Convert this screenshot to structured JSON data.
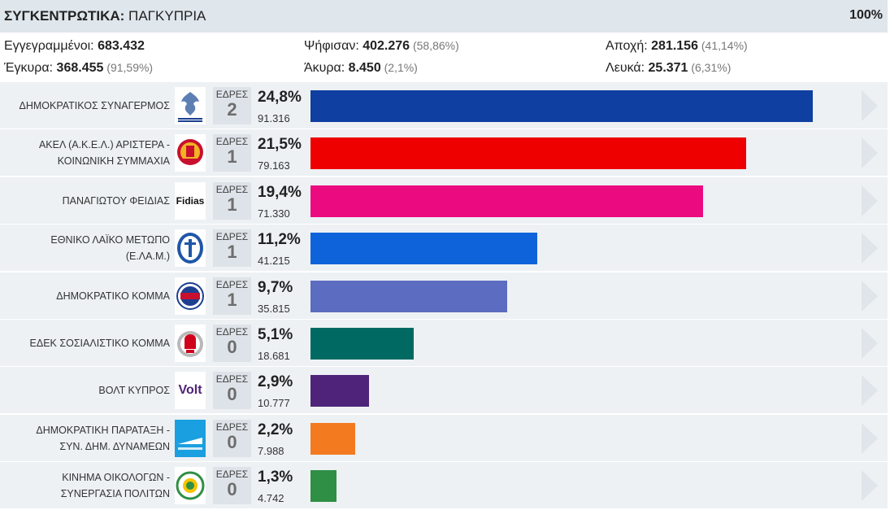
{
  "header": {
    "title_bold": "ΣΥΓΚΕΝΤΡΩΤΙΚΑ:",
    "title_rest": " ΠΑΓΚΥΠΡΙΑ",
    "progress": "100%"
  },
  "stats": {
    "registered": {
      "label": "Εγγεγραμμένοι: ",
      "value": "683.432",
      "pct": ""
    },
    "voted": {
      "label": "Ψήφισαν: ",
      "value": "402.276",
      "pct": " (58,86%)"
    },
    "abstention": {
      "label": "Αποχή: ",
      "value": "281.156",
      "pct": " (41,14%)"
    },
    "valid": {
      "label": "Έγκυρα: ",
      "value": "368.455",
      "pct": " (91,59%)"
    },
    "invalid": {
      "label": "Άκυρα: ",
      "value": "8.450",
      "pct": " (2,1%)"
    },
    "blank": {
      "label": "Λευκά: ",
      "value": "25.371",
      "pct": " (6,31%)"
    }
  },
  "seats_label": "ΕΔΡΕΣ",
  "parties": [
    {
      "name": "ΔΗΜΟΚΡΑΤΙΚΟΣ ΣΥΝΑΓΕΡΜΟΣ",
      "seats": "2",
      "percent": "24,8%",
      "votes": "91.316",
      "share": 24.8,
      "color": "#0f3fa1",
      "logo": "eagle-logo-icon",
      "logo_text": "ΔΗΜΟΚΡΑΤΙΚΟΣ ΣΥΝΑΓΕΡΜΟΣ"
    },
    {
      "name": "ΑΚΕΛ (Α.Κ.Ε.Λ.) ΑΡΙΣΤΕΡΑ -\nΚΟΙΝΩΝΙΚΗ ΣΥΜΜΑΧΙΑ",
      "seats": "1",
      "percent": "21,5%",
      "votes": "79.163",
      "share": 21.5,
      "color": "#ee0000",
      "logo": "akel-logo-icon",
      "logo_text": ""
    },
    {
      "name": "ΠΑΝΑΓΙΩΤΟΥ ΦΕΙΔΙΑΣ",
      "seats": "1",
      "percent": "19,4%",
      "votes": "71.330",
      "share": 19.4,
      "color": "#ec0a80",
      "logo": "fidias-logo-icon",
      "logo_text": "Fidias"
    },
    {
      "name": "ΕΘΝΙΚΟ ΛΑΪΚΟ ΜΕΤΩΠΟ\n(Ε.ΛΑ.Μ.)",
      "seats": "1",
      "percent": "11,2%",
      "votes": "41.215",
      "share": 11.2,
      "color": "#0f63da",
      "logo": "elam-logo-icon",
      "logo_text": ""
    },
    {
      "name": "ΔΗΜΟΚΡΑΤΙΚΟ ΚΟΜΜΑ",
      "seats": "1",
      "percent": "9,7%",
      "votes": "35.815",
      "share": 9.7,
      "color": "#5c6cc0",
      "logo": "diko-logo-icon",
      "logo_text": "ΔΗ ΚΟ"
    },
    {
      "name": "ΕΔΕΚ ΣΟΣΙΑΛΙΣΤΙΚΟ ΚΟΜΜΑ",
      "seats": "0",
      "percent": "5,1%",
      "votes": "18.681",
      "share": 5.1,
      "color": "#006a62",
      "logo": "edek-logo-icon",
      "logo_text": ""
    },
    {
      "name": "ΒΟΛΤ ΚΥΠΡΟΣ",
      "seats": "0",
      "percent": "2,9%",
      "votes": "10.777",
      "share": 2.9,
      "color": "#4f2379",
      "logo": "volt-logo-icon",
      "logo_text": "Volt"
    },
    {
      "name": "ΔΗΜΟΚΡΑΤΙΚΗ ΠΑΡΑΤΑΞΗ -\nΣΥΝ. ΔΗΜ. ΔΥΝΑΜΕΩΝ",
      "seats": "0",
      "percent": "2,2%",
      "votes": "7.988",
      "share": 2.2,
      "color": "#f47a20",
      "logo": "dipa-logo-icon",
      "logo_text": ""
    },
    {
      "name": "ΚΙΝΗΜΑ ΟΙΚΟΛΟΓΩΝ -\nΣΥΝΕΡΓΑΣΙΑ ΠΟΛΙΤΩΝ",
      "seats": "0",
      "percent": "1,3%",
      "votes": "4.742",
      "share": 1.3,
      "color": "#2f8f45",
      "logo": "ecologists-logo-icon",
      "logo_text": ""
    }
  ]
}
